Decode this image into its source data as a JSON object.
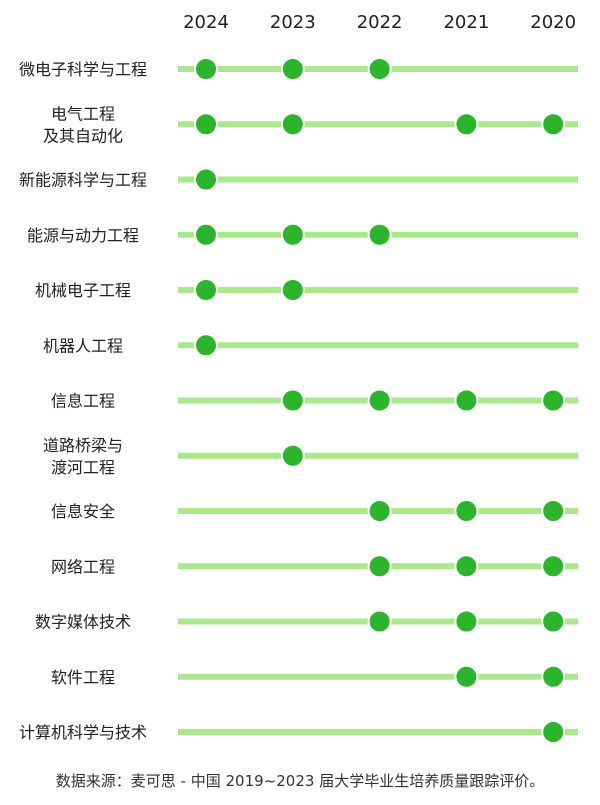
{
  "chart_data": {
    "type": "scatter",
    "title": "",
    "years": [
      "2024",
      "2023",
      "2022",
      "2021",
      "2020"
    ],
    "rows": [
      {
        "label": [
          "微电子科学与工程"
        ],
        "present": [
          true,
          true,
          true,
          false,
          false
        ]
      },
      {
        "label": [
          "电气工程",
          "及其自动化"
        ],
        "present": [
          true,
          true,
          false,
          true,
          true
        ]
      },
      {
        "label": [
          "新能源科学与工程"
        ],
        "present": [
          true,
          false,
          false,
          false,
          false
        ]
      },
      {
        "label": [
          "能源与动力工程"
        ],
        "present": [
          true,
          true,
          true,
          false,
          false
        ]
      },
      {
        "label": [
          "机械电子工程"
        ],
        "present": [
          true,
          true,
          false,
          false,
          false
        ]
      },
      {
        "label": [
          "机器人工程"
        ],
        "present": [
          true,
          false,
          false,
          false,
          false
        ]
      },
      {
        "label": [
          "信息工程"
        ],
        "present": [
          false,
          true,
          true,
          true,
          true
        ]
      },
      {
        "label": [
          "道路桥梁与",
          "渡河工程"
        ],
        "present": [
          false,
          true,
          false,
          false,
          false
        ]
      },
      {
        "label": [
          "信息安全"
        ],
        "present": [
          false,
          false,
          true,
          true,
          true
        ]
      },
      {
        "label": [
          "网络工程"
        ],
        "present": [
          false,
          false,
          true,
          true,
          true
        ]
      },
      {
        "label": [
          "数字媒体技术"
        ],
        "present": [
          false,
          false,
          true,
          true,
          true
        ]
      },
      {
        "label": [
          "软件工程"
        ],
        "present": [
          false,
          false,
          false,
          true,
          true
        ]
      },
      {
        "label": [
          "计算机科学与技术"
        ],
        "present": [
          false,
          false,
          false,
          false,
          true
        ]
      }
    ],
    "colors": {
      "line": "#a9e98c",
      "dot": "#2cb52c",
      "dot_border": "#ffffff"
    }
  },
  "footer": "数据来源：麦可思 - 中国 2019~2023 届大学毕业生培养质量跟踪评价。"
}
